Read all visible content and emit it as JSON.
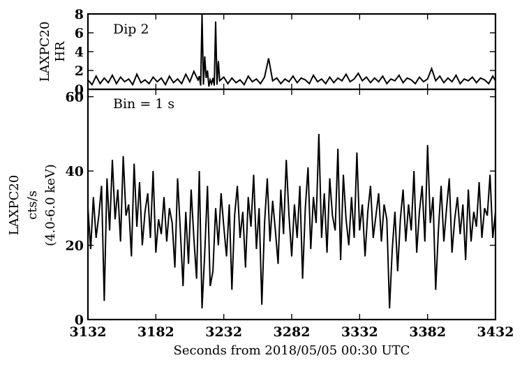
{
  "chart_data": [
    {
      "type": "line",
      "panel": "top",
      "annotation": "Dip 2",
      "ylabel_lines": [
        "LAXPC20",
        "HR"
      ],
      "xlim": [
        3132,
        3432
      ],
      "ylim": [
        0,
        8
      ],
      "yticks": [
        0,
        2,
        4,
        6,
        8
      ],
      "series": [
        {
          "x": [
            3132,
            3135,
            3138,
            3141,
            3144,
            3147,
            3150,
            3153,
            3156,
            3159,
            3162,
            3165,
            3168,
            3171,
            3174,
            3177,
            3180,
            3183,
            3186,
            3189,
            3192,
            3195,
            3198,
            3201,
            3204,
            3207,
            3210,
            3213,
            3214,
            3215,
            3216,
            3217,
            3218,
            3219,
            3220,
            3221,
            3222,
            3223,
            3224,
            3225,
            3226,
            3227,
            3228,
            3229,
            3232,
            3235,
            3238,
            3241,
            3244,
            3247,
            3250,
            3253,
            3256,
            3259,
            3262,
            3265,
            3268,
            3271,
            3274,
            3277,
            3280,
            3283,
            3286,
            3289,
            3292,
            3295,
            3298,
            3301,
            3304,
            3307,
            3310,
            3313,
            3316,
            3319,
            3322,
            3325,
            3328,
            3331,
            3334,
            3337,
            3340,
            3343,
            3346,
            3349,
            3352,
            3355,
            3358,
            3361,
            3364,
            3367,
            3370,
            3373,
            3376,
            3379,
            3382,
            3385,
            3388,
            3391,
            3394,
            3397,
            3400,
            3403,
            3406,
            3409,
            3412,
            3415,
            3418,
            3421,
            3424,
            3427,
            3430,
            3432
          ],
          "y": [
            1.0,
            0.5,
            1.4,
            0.6,
            1.2,
            0.7,
            1.5,
            0.6,
            1.3,
            0.8,
            1.1,
            0.5,
            1.6,
            0.7,
            1.0,
            0.6,
            1.3,
            0.8,
            1.2,
            0.5,
            1.4,
            0.7,
            1.1,
            0.6,
            1.6,
            0.8,
            1.9,
            1.0,
            1.4,
            0.4,
            8.0,
            0.5,
            3.5,
            1.2,
            2.0,
            0.3,
            1.0,
            0.6,
            1.2,
            0.4,
            7.2,
            0.5,
            3.0,
            0.9,
            1.3,
            0.6,
            1.2,
            0.7,
            1.0,
            0.5,
            1.4,
            0.8,
            1.1,
            0.6,
            1.3,
            3.3,
            0.9,
            1.2,
            0.6,
            1.1,
            0.8,
            1.4,
            0.7,
            1.2,
            1.0,
            0.6,
            1.5,
            0.8,
            1.1,
            0.6,
            1.3,
            0.7,
            1.2,
            0.9,
            1.6,
            0.8,
            1.1,
            1.7,
            0.9,
            1.3,
            0.7,
            1.2,
            0.8,
            1.4,
            0.6,
            1.1,
            0.9,
            1.5,
            0.7,
            1.2,
            1.0,
            0.6,
            1.3,
            0.8,
            1.1,
            2.2,
            0.9,
            1.4,
            0.7,
            1.2,
            0.8,
            1.5,
            0.6,
            1.1,
            0.9,
            1.3,
            0.7,
            1.2,
            1.0,
            0.6,
            1.4,
            0.9
          ]
        }
      ]
    },
    {
      "type": "line",
      "panel": "bottom",
      "annotation": "Bin = 1 s",
      "ylabel_lines": [
        "LAXPC20",
        "cts/s",
        "(4.0-6.0 keV)"
      ],
      "xlabel": "Seconds from 2018/05/05 00:30 UTC",
      "xlim": [
        3132,
        3432
      ],
      "ylim": [
        0,
        62
      ],
      "yticks": [
        0,
        20,
        40,
        60
      ],
      "xticks": [
        3132,
        3182,
        3232,
        3282,
        3332,
        3382,
        3432
      ],
      "series": [
        {
          "x": [
            3132,
            3134,
            3136,
            3138,
            3140,
            3142,
            3144,
            3146,
            3148,
            3150,
            3152,
            3154,
            3156,
            3158,
            3160,
            3162,
            3164,
            3166,
            3168,
            3170,
            3172,
            3174,
            3176,
            3178,
            3180,
            3182,
            3184,
            3186,
            3188,
            3190,
            3192,
            3194,
            3196,
            3198,
            3200,
            3202,
            3204,
            3206,
            3208,
            3210,
            3212,
            3214,
            3216,
            3218,
            3220,
            3222,
            3224,
            3226,
            3228,
            3230,
            3232,
            3234,
            3236,
            3238,
            3240,
            3242,
            3244,
            3246,
            3248,
            3250,
            3252,
            3254,
            3256,
            3258,
            3260,
            3262,
            3264,
            3266,
            3268,
            3270,
            3272,
            3274,
            3276,
            3278,
            3280,
            3282,
            3284,
            3286,
            3288,
            3290,
            3292,
            3294,
            3296,
            3298,
            3300,
            3302,
            3304,
            3306,
            3308,
            3310,
            3312,
            3314,
            3316,
            3318,
            3320,
            3322,
            3324,
            3326,
            3328,
            3330,
            3332,
            3334,
            3336,
            3338,
            3340,
            3342,
            3344,
            3346,
            3348,
            3350,
            3352,
            3354,
            3356,
            3358,
            3360,
            3362,
            3364,
            3366,
            3368,
            3370,
            3372,
            3374,
            3376,
            3378,
            3380,
            3382,
            3384,
            3386,
            3388,
            3390,
            3392,
            3394,
            3396,
            3398,
            3400,
            3402,
            3404,
            3406,
            3408,
            3410,
            3412,
            3414,
            3416,
            3418,
            3420,
            3422,
            3424,
            3426,
            3428,
            3430,
            3432
          ],
          "y": [
            30,
            19,
            33,
            22,
            28,
            36,
            5,
            38,
            24,
            43,
            27,
            35,
            21,
            44,
            28,
            31,
            17,
            42,
            25,
            37,
            20,
            29,
            34,
            22,
            40,
            18,
            27,
            23,
            33,
            21,
            30,
            26,
            14,
            38,
            24,
            9,
            29,
            15,
            35,
            22,
            11,
            40,
            3,
            18,
            36,
            9,
            13,
            30,
            20,
            34,
            25,
            17,
            31,
            8,
            28,
            36,
            22,
            29,
            14,
            33,
            25,
            39,
            19,
            30,
            4,
            26,
            38,
            21,
            32,
            24,
            15,
            35,
            23,
            43,
            28,
            17,
            31,
            22,
            36,
            11,
            30,
            41,
            19,
            33,
            26,
            50,
            22,
            34,
            18,
            38,
            28,
            24,
            46,
            16,
            39,
            27,
            20,
            33,
            22,
            45,
            24,
            31,
            17,
            29,
            36,
            22,
            28,
            34,
            21,
            31,
            27,
            3,
            19,
            29,
            13,
            27,
            35,
            21,
            31,
            24,
            40,
            18,
            29,
            36,
            21,
            47,
            26,
            33,
            8,
            24,
            36,
            21,
            30,
            38,
            18,
            27,
            33,
            23,
            31,
            16,
            35,
            21,
            29,
            25,
            37,
            22,
            30,
            28,
            39,
            22,
            29
          ]
        }
      ]
    }
  ]
}
